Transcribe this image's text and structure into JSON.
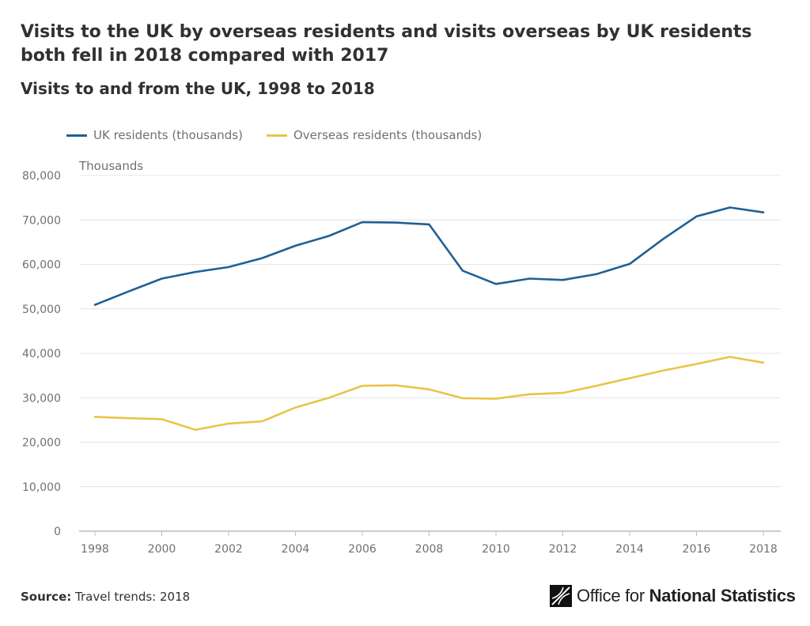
{
  "header": {
    "title": "Visits to the UK by overseas residents and visits overseas by UK residents both fell in 2018 compared with 2017",
    "subtitle": "Visits to and from the UK, 1998 to 2018"
  },
  "footer": {
    "source_label": "Source:",
    "source_text": "Travel trends: 2018",
    "logo_text_light": "Office for ",
    "logo_text_bold": "National Statistics"
  },
  "chart_data": {
    "type": "line",
    "ylabel": "Thousands",
    "ylim": [
      0,
      80000
    ],
    "yticks": [
      0,
      10000,
      20000,
      30000,
      40000,
      50000,
      60000,
      70000,
      80000
    ],
    "ytick_labels": [
      "0",
      "10,000",
      "20,000",
      "30,000",
      "40,000",
      "50,000",
      "60,000",
      "70,000",
      "80,000"
    ],
    "xlim": [
      1998,
      2018
    ],
    "xticks": [
      1998,
      2000,
      2002,
      2004,
      2006,
      2008,
      2010,
      2012,
      2014,
      2016,
      2018
    ],
    "x": [
      1998,
      1999,
      2000,
      2001,
      2002,
      2003,
      2004,
      2005,
      2006,
      2007,
      2008,
      2009,
      2010,
      2011,
      2012,
      2013,
      2014,
      2015,
      2016,
      2017,
      2018
    ],
    "grid": true,
    "legend_position": "top-left",
    "series": [
      {
        "name": "UK residents (thousands)",
        "color": "#206095",
        "values": [
          50900,
          53900,
          56800,
          58300,
          59400,
          61400,
          64200,
          66400,
          69500,
          69400,
          69000,
          58600,
          55600,
          56800,
          56500,
          57800,
          60100,
          65700,
          70800,
          72800,
          71700
        ]
      },
      {
        "name": "Overseas residents (thousands)",
        "color": "#e8c547",
        "values": [
          25700,
          25400,
          25200,
          22800,
          24200,
          24700,
          27800,
          30000,
          32700,
          32800,
          31900,
          29900,
          29800,
          30800,
          31100,
          32700,
          34400,
          36100,
          37600,
          39200,
          37900
        ]
      }
    ]
  }
}
